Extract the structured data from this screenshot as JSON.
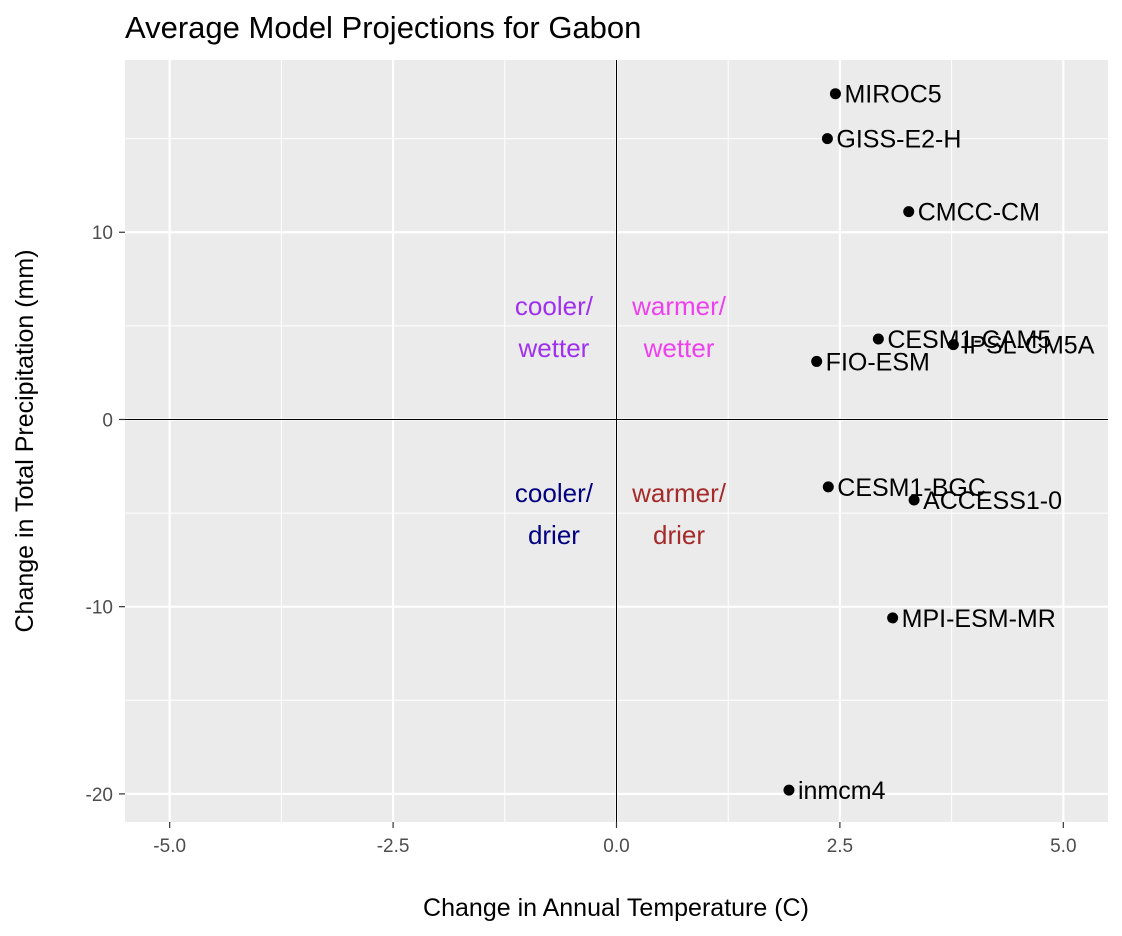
{
  "chart_data": {
    "type": "scatter",
    "title": "Average Model Projections for Gabon",
    "xlabel": "Change in Annual Temperature (C)",
    "ylabel": "Change in Total Precipitation (mm)",
    "xlim": [
      -5.5,
      5.5
    ],
    "ylim": [
      -21.5,
      19.2
    ],
    "x_ticks": [
      -5.0,
      -2.5,
      0.0,
      2.5,
      5.0
    ],
    "x_tick_labels": [
      "-5.0",
      "-2.5",
      "0.0",
      "2.5",
      "5.0"
    ],
    "y_ticks": [
      -20,
      -10,
      0,
      10
    ],
    "y_tick_labels": [
      "-20",
      "-10",
      "0",
      "10"
    ],
    "grid": true,
    "reference_lines": {
      "x": 0,
      "y": 0
    },
    "points": [
      {
        "label": "MIROC5",
        "x": 2.45,
        "y": 17.4
      },
      {
        "label": "GISS-E2-H",
        "x": 2.36,
        "y": 15.0
      },
      {
        "label": "CMCC-CM",
        "x": 3.27,
        "y": 11.1
      },
      {
        "label": "CESM1-CAM5",
        "x": 2.93,
        "y": 4.3
      },
      {
        "label": "IPSL-CM5A",
        "x": 3.77,
        "y": 4.0
      },
      {
        "label": "FIO-ESM",
        "x": 2.24,
        "y": 3.1
      },
      {
        "label": "CESM1-BGC",
        "x": 2.37,
        "y": -3.6
      },
      {
        "label": "ACCESS1-0",
        "x": 3.33,
        "y": -4.3
      },
      {
        "label": "MPI-ESM-MR",
        "x": 3.09,
        "y": -10.6
      },
      {
        "label": "inmcm4",
        "x": 1.93,
        "y": -19.8
      }
    ],
    "quadrant_labels": [
      {
        "lines": [
          "cooler/",
          "wetter"
        ],
        "x": -0.7,
        "color": "#a030f0",
        "pos": "upper"
      },
      {
        "lines": [
          "warmer/",
          "wetter"
        ],
        "x": 0.7,
        "color": "#ee40ee",
        "pos": "upper"
      },
      {
        "lines": [
          "cooler/",
          "drier"
        ],
        "x": -0.7,
        "color": "#000080",
        "pos": "lower"
      },
      {
        "lines": [
          "warmer/",
          "drier"
        ],
        "x": 0.7,
        "color": "#a52a2a",
        "pos": "lower"
      }
    ],
    "colors": {
      "panel": "#ebebeb",
      "grid": "#ffffff",
      "point": "#000000"
    }
  }
}
